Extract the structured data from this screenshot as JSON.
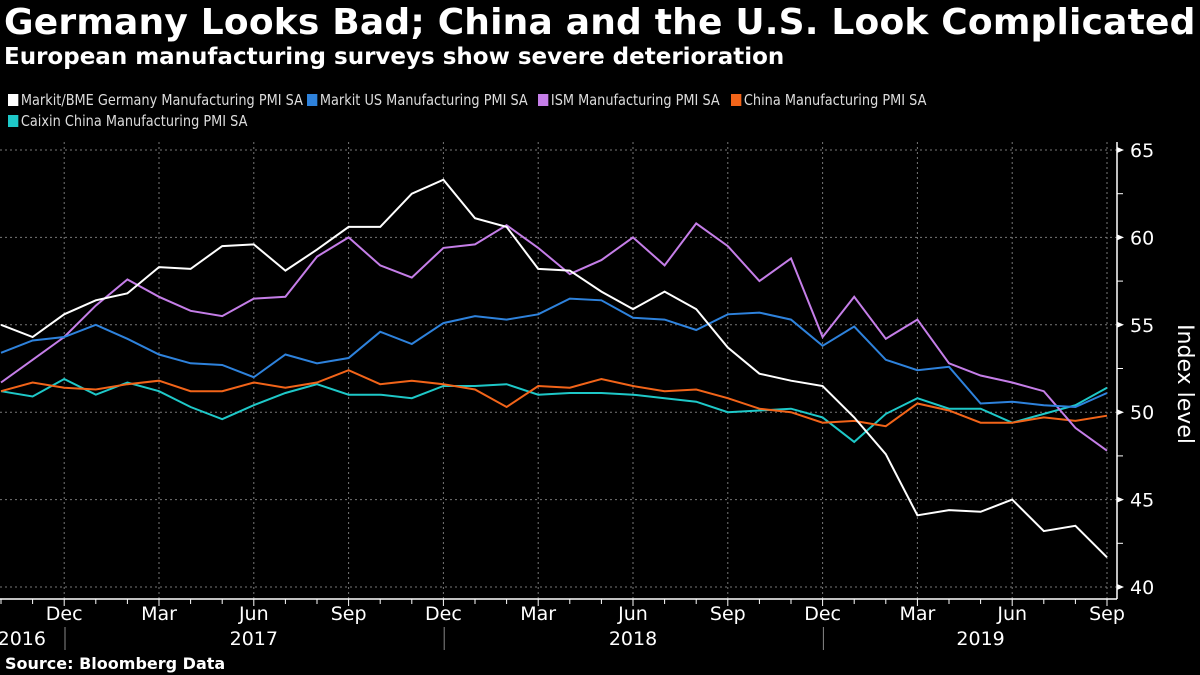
{
  "title": "Germany Looks Bad; China and the U.S. Look Complicated",
  "subtitle": "European manufacturing surveys show severe deterioration",
  "source": "Source: Bloomberg Data",
  "chart_data": {
    "type": "line",
    "title": "Germany Looks Bad; China and the U.S. Look Complicated",
    "subtitle": "European manufacturing surveys show severe deterioration",
    "xlabel": "",
    "ylabel": "Index level",
    "ylim": [
      40,
      65
    ],
    "yticks": [
      40,
      45,
      50,
      55,
      60,
      65
    ],
    "grid": true,
    "legend_position": "top",
    "y_axis_side": "right",
    "x": [
      "2016-10",
      "2016-11",
      "2016-12",
      "2017-01",
      "2017-02",
      "2017-03",
      "2017-04",
      "2017-05",
      "2017-06",
      "2017-07",
      "2017-08",
      "2017-09",
      "2017-10",
      "2017-11",
      "2017-12",
      "2018-01",
      "2018-02",
      "2018-03",
      "2018-04",
      "2018-05",
      "2018-06",
      "2018-07",
      "2018-08",
      "2018-09",
      "2018-10",
      "2018-11",
      "2018-12",
      "2019-01",
      "2019-02",
      "2019-03",
      "2019-04",
      "2019-05",
      "2019-06",
      "2019-07",
      "2019-08",
      "2019-09"
    ],
    "month_ticks": [
      {
        "index": 2,
        "label": "Dec"
      },
      {
        "index": 5,
        "label": "Mar"
      },
      {
        "index": 8,
        "label": "Jun"
      },
      {
        "index": 11,
        "label": "Sep"
      },
      {
        "index": 14,
        "label": "Dec"
      },
      {
        "index": 17,
        "label": "Mar"
      },
      {
        "index": 20,
        "label": "Jun"
      },
      {
        "index": 23,
        "label": "Sep"
      },
      {
        "index": 26,
        "label": "Dec"
      },
      {
        "index": 29,
        "label": "Mar"
      },
      {
        "index": 32,
        "label": "Jun"
      },
      {
        "index": 35,
        "label": "Sep"
      }
    ],
    "year_labels": [
      {
        "index": 0.5,
        "label": "2016"
      },
      {
        "index": 8,
        "label": "2017"
      },
      {
        "index": 20,
        "label": "2018"
      },
      {
        "index": 31,
        "label": "2019"
      }
    ],
    "year_dividers": [
      2.5,
      14.5,
      26.5
    ],
    "series": [
      {
        "name": "Markit/BME Germany Manufacturing PMI SA",
        "color": "#ffffff",
        "values": [
          55.0,
          54.3,
          55.6,
          56.4,
          56.8,
          58.3,
          58.2,
          59.5,
          59.6,
          58.1,
          59.3,
          60.6,
          60.6,
          62.5,
          63.3,
          61.1,
          60.6,
          58.2,
          58.1,
          56.9,
          55.9,
          56.9,
          55.9,
          53.7,
          52.2,
          51.8,
          51.5,
          49.7,
          47.6,
          44.1,
          44.4,
          44.3,
          45.0,
          43.2,
          43.5,
          41.7
        ]
      },
      {
        "name": "Markit US Manufacturing PMI SA",
        "color": "#2e82dc",
        "values": [
          53.4,
          54.1,
          54.3,
          55.0,
          54.2,
          53.3,
          52.8,
          52.7,
          52.0,
          53.3,
          52.8,
          53.1,
          54.6,
          53.9,
          55.1,
          55.5,
          55.3,
          55.6,
          56.5,
          56.4,
          55.4,
          55.3,
          54.7,
          55.6,
          55.7,
          55.3,
          53.8,
          54.9,
          53.0,
          52.4,
          52.6,
          50.5,
          50.6,
          50.4,
          50.3,
          51.1
        ]
      },
      {
        "name": "ISM Manufacturing PMI SA",
        "color": "#c57ee8",
        "values": [
          51.7,
          53.0,
          54.3,
          56.1,
          57.6,
          56.6,
          55.8,
          55.5,
          56.5,
          56.6,
          58.9,
          60.0,
          58.4,
          57.7,
          59.4,
          59.6,
          60.7,
          59.4,
          57.9,
          58.7,
          60.0,
          58.4,
          60.8,
          59.5,
          57.5,
          58.8,
          54.3,
          56.6,
          54.2,
          55.3,
          52.8,
          52.1,
          51.7,
          51.2,
          49.1,
          47.8
        ]
      },
      {
        "name": "China Manufacturing PMI SA",
        "color": "#f26419",
        "values": [
          51.2,
          51.7,
          51.4,
          51.3,
          51.6,
          51.8,
          51.2,
          51.2,
          51.7,
          51.4,
          51.7,
          52.4,
          51.6,
          51.8,
          51.6,
          51.3,
          50.3,
          51.5,
          51.4,
          51.9,
          51.5,
          51.2,
          51.3,
          50.8,
          50.2,
          50.0,
          49.4,
          49.5,
          49.2,
          50.5,
          50.1,
          49.4,
          49.4,
          49.7,
          49.5,
          49.8
        ]
      },
      {
        "name": "Caixin China Manufacturing PMI SA",
        "color": "#1ec8c8",
        "values": [
          51.2,
          50.9,
          51.9,
          51.0,
          51.7,
          51.2,
          50.3,
          49.6,
          50.4,
          51.1,
          51.6,
          51.0,
          51.0,
          50.8,
          51.5,
          51.5,
          51.6,
          51.0,
          51.1,
          51.1,
          51.0,
          50.8,
          50.6,
          50.0,
          50.1,
          50.2,
          49.7,
          48.3,
          49.9,
          50.8,
          50.2,
          50.2,
          49.4,
          49.9,
          50.4,
          51.4
        ]
      }
    ]
  }
}
